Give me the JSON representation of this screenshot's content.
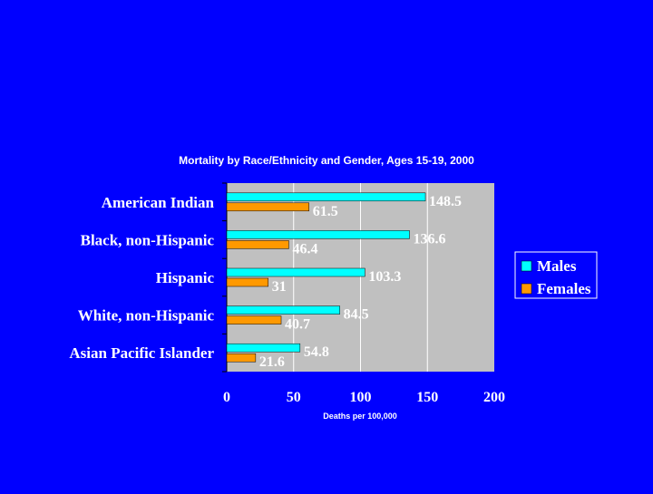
{
  "colors": {
    "background": "#0000FF",
    "plot_area": "#C0C0C0",
    "males": "#00FFFF",
    "females": "#FF9900",
    "text": "#FFFFFF",
    "gridline": "#FFFFFF"
  },
  "chart_data": {
    "type": "bar",
    "orientation": "horizontal",
    "title": "Mortality by Race/Ethnicity and Gender, Ages 15-19, 2000",
    "xlabel": "Deaths per 100,000",
    "ylabel": "",
    "xlim": [
      0,
      200
    ],
    "xticks": [
      "0",
      "50",
      "100",
      "150",
      "200"
    ],
    "grid": true,
    "legend_position": "right",
    "categories": [
      "American Indian",
      "Black, non-Hispanic",
      "Hispanic",
      "White, non-Hispanic",
      "Asian Pacific Islander"
    ],
    "series": [
      {
        "name": "Males",
        "color": "#00FFFF",
        "values": [
          148.5,
          136.6,
          103.3,
          84.5,
          54.8
        ],
        "labels": [
          "148.5",
          "136.6",
          "103.3",
          "84.5",
          "54.8"
        ]
      },
      {
        "name": "Females",
        "color": "#FF9900",
        "values": [
          61.5,
          46.4,
          31,
          40.7,
          21.6
        ],
        "labels": [
          "61.5",
          "46.4",
          "31",
          "40.7",
          "21.6"
        ]
      }
    ]
  }
}
